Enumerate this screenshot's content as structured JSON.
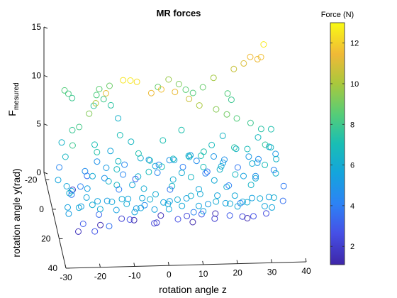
{
  "chart_data": {
    "type": "scatter",
    "projection": "3d",
    "title": "MR forces",
    "xlabel": "rotation angle z",
    "ylabel": "rotation angle y(rad)",
    "zlabel": "F_mesured",
    "zlabel_main": "F",
    "zlabel_sub": "mesured",
    "xlim": [
      -30,
      40
    ],
    "ylim": [
      -25,
      40
    ],
    "zlim": [
      0,
      15
    ],
    "x_ticks": [
      -30,
      -20,
      -10,
      0,
      10,
      20,
      30,
      40
    ],
    "x_tick_labels": [
      "-30",
      "-20",
      "-10",
      "0",
      "10",
      "20",
      "30",
      "40"
    ],
    "y_ticks": [
      -20,
      0,
      20,
      40
    ],
    "y_tick_labels": [
      "-20",
      "0",
      "20",
      "40"
    ],
    "z_ticks": [
      0,
      5,
      10,
      15
    ],
    "z_tick_labels": [
      "0",
      "5",
      "10",
      "15"
    ],
    "grid": false,
    "marker": "open-circle",
    "colormap": "parula",
    "colorbar": {
      "title": "Force (N)",
      "range": [
        1.1,
        13
      ],
      "ticks": [
        2,
        4,
        6,
        8,
        10,
        12
      ],
      "tick_labels": [
        "2",
        "4",
        "6",
        "8",
        "10",
        "12"
      ],
      "placement": "right"
    },
    "points": [
      [
        -24,
        -25,
        8.4
      ],
      [
        -23,
        -24,
        8.2
      ],
      [
        -22,
        -23,
        7.9
      ],
      [
        -14,
        -24,
        8.6
      ],
      [
        -11,
        -24,
        8.9
      ],
      [
        -15,
        -22,
        8.3
      ],
      [
        -13,
        -21,
        8.0
      ],
      [
        -16,
        -20,
        7.5
      ],
      [
        -11,
        -20,
        7.5
      ],
      [
        -9,
        -19,
        6.3
      ],
      [
        3,
        -23,
        8.8
      ],
      [
        6,
        -22,
        9.7
      ],
      [
        9,
        -22,
        9.2
      ],
      [
        11,
        -22,
        8.6
      ],
      [
        13,
        -21,
        8.4
      ],
      [
        16,
        -22,
        8.8
      ],
      [
        19,
        -21,
        9.9
      ],
      [
        23,
        -20,
        8.4
      ],
      [
        24,
        -19,
        7.9
      ],
      [
        25,
        -22,
        10.6
      ],
      [
        28,
        -23,
        11.0
      ],
      [
        30,
        -24,
        11.5
      ],
      [
        32,
        -23,
        11.4
      ],
      [
        33,
        -23,
        11.6
      ],
      [
        34,
        -25,
        12.6
      ],
      [
        -27,
        -3,
        6.4
      ],
      [
        -24,
        -2,
        7.8
      ],
      [
        -22,
        -2,
        8.1
      ],
      [
        -19,
        -3,
        9.3
      ],
      [
        -17,
        -4,
        10.2
      ],
      [
        -14,
        -4,
        11.2
      ],
      [
        -9,
        -4,
        12.5
      ],
      [
        -7,
        -3,
        12.6
      ],
      [
        -5,
        -4,
        12.3
      ],
      [
        -1,
        -2,
        11.4
      ],
      [
        2,
        -3,
        11.6
      ],
      [
        6,
        -3,
        11.3
      ],
      [
        10,
        -2,
        10.7
      ],
      [
        13,
        -2,
        10.0
      ],
      [
        18,
        -3,
        9.4
      ],
      [
        21,
        -2,
        9.0
      ],
      [
        24,
        -3,
        8.4
      ],
      [
        28,
        -3,
        7.9
      ],
      [
        31,
        -2,
        7.4
      ],
      [
        34,
        -3,
        7.2
      ],
      [
        -24,
        -1,
        1.8
      ],
      [
        -20,
        1,
        3.5
      ],
      [
        -17,
        0,
        4.8
      ],
      [
        -13,
        -1,
        5.7
      ],
      [
        -9,
        0,
        4.4
      ],
      [
        -6,
        2,
        3.2
      ],
      [
        -2,
        1,
        5.0
      ],
      [
        1,
        0,
        4.3
      ],
      [
        4,
        1,
        4.9
      ],
      [
        8,
        0,
        4.0
      ],
      [
        10,
        2,
        5.5
      ],
      [
        12,
        0,
        4.6
      ],
      [
        15,
        1,
        3.6
      ],
      [
        17,
        0,
        5.0
      ],
      [
        20,
        1,
        4.8
      ],
      [
        24,
        0,
        3.8
      ],
      [
        27,
        2,
        5.2
      ],
      [
        30,
        0,
        4.6
      ],
      [
        33,
        1,
        6.0
      ],
      [
        35,
        0,
        5.1
      ],
      [
        -21,
        5,
        4.6
      ],
      [
        -15,
        7,
        5.2
      ],
      [
        -10,
        6,
        4.3
      ],
      [
        -5,
        7,
        6.1
      ],
      [
        0,
        6,
        4.4
      ],
      [
        5,
        5,
        5.5
      ],
      [
        9,
        7,
        6.2
      ],
      [
        14,
        6,
        4.2
      ],
      [
        19,
        7,
        5.4
      ],
      [
        23,
        5,
        6.5
      ],
      [
        29,
        7,
        5.3
      ],
      [
        33,
        6,
        6.7
      ],
      [
        -25,
        9,
        7.9
      ],
      [
        -18,
        10,
        7.3
      ],
      [
        -12,
        12,
        6.6
      ],
      [
        -6,
        11,
        7.2
      ],
      [
        -1,
        10,
        5.7
      ],
      [
        4,
        12,
        6.7
      ],
      [
        9,
        9,
        6.4
      ],
      [
        13,
        11,
        7.2
      ],
      [
        18,
        12,
        5.8
      ],
      [
        22,
        10,
        7.4
      ],
      [
        27,
        12,
        6.0
      ],
      [
        31,
        10,
        7.6
      ],
      [
        34,
        12,
        6.4
      ],
      [
        -20,
        17,
        5.9
      ],
      [
        -13,
        18,
        6.7
      ],
      [
        -7,
        20,
        6.2
      ],
      [
        0,
        19,
        7.0
      ],
      [
        6,
        17,
        6.0
      ],
      [
        12,
        20,
        7.0
      ],
      [
        17,
        18,
        6.4
      ],
      [
        24,
        17,
        5.5
      ],
      [
        30,
        19,
        6.9
      ],
      [
        -22,
        22,
        5.4
      ],
      [
        -16,
        24,
        6.4
      ],
      [
        -9,
        23,
        5.8
      ],
      [
        -4,
        21,
        6.8
      ],
      [
        3,
        22,
        6.1
      ],
      [
        8,
        24,
        6.6
      ],
      [
        15,
        22,
        5.9
      ],
      [
        21,
        23,
        6.6
      ],
      [
        27,
        22,
        6.0
      ],
      [
        33,
        21,
        6.3
      ],
      [
        -14,
        28,
        6.6
      ],
      [
        -6,
        27,
        6.0
      ],
      [
        2,
        29,
        6.5
      ],
      [
        10,
        27,
        5.8
      ],
      [
        18,
        28,
        6.1
      ],
      [
        25,
        29,
        6.4
      ],
      [
        -30,
        17,
        5.6
      ],
      [
        -28,
        22,
        5.7
      ],
      [
        -27,
        26,
        5.8
      ],
      [
        -28,
        30,
        6.2
      ],
      [
        -29,
        35,
        5.5
      ],
      [
        -26,
        38,
        5.9
      ],
      [
        -25,
        34,
        5.4
      ],
      [
        -23,
        30,
        5.7
      ],
      [
        -22,
        37,
        6.0
      ],
      [
        -20,
        32,
        5.6
      ],
      [
        -17,
        30,
        5.3
      ],
      [
        -16,
        34,
        5.8
      ],
      [
        -15,
        37,
        5.4
      ],
      [
        -13,
        33,
        5.9
      ],
      [
        -12,
        37,
        6.0
      ],
      [
        -11,
        31,
        5.6
      ],
      [
        -9,
        35,
        5.2
      ],
      [
        -8,
        38,
        5.7
      ],
      [
        -7,
        32,
        5.8
      ],
      [
        -5,
        35,
        6.1
      ],
      [
        -4,
        38,
        5.5
      ],
      [
        -3,
        31,
        6.0
      ],
      [
        -1,
        34,
        5.6
      ],
      [
        0,
        37,
        5.9
      ],
      [
        1,
        32,
        5.4
      ],
      [
        3,
        35,
        6.0
      ],
      [
        4,
        38,
        5.8
      ],
      [
        6,
        31,
        5.5
      ],
      [
        7,
        34,
        6.2
      ],
      [
        9,
        37,
        5.6
      ],
      [
        10,
        31,
        5.9
      ],
      [
        12,
        34,
        5.3
      ],
      [
        14,
        37,
        6.0
      ],
      [
        15,
        31,
        5.7
      ],
      [
        17,
        35,
        5.5
      ],
      [
        18,
        38,
        5.9
      ],
      [
        20,
        32,
        5.8
      ],
      [
        22,
        35,
        5.6
      ],
      [
        23,
        38,
        6.0
      ],
      [
        25,
        32,
        5.5
      ],
      [
        27,
        35,
        5.9
      ],
      [
        28,
        39,
        5.7
      ],
      [
        30,
        31,
        5.4
      ],
      [
        31,
        36,
        6.1
      ],
      [
        -19,
        26,
        3.3
      ],
      [
        -24,
        30,
        3.0
      ],
      [
        -21,
        34,
        2.8
      ],
      [
        -17,
        36,
        3.6
      ],
      [
        -10,
        26,
        2.7
      ],
      [
        -3,
        27,
        2.4
      ],
      [
        4,
        26,
        2.6
      ],
      [
        11,
        25,
        2.9
      ],
      [
        19,
        27,
        3.0
      ],
      [
        26,
        26,
        2.7
      ],
      [
        -12,
        22,
        2.2
      ],
      [
        -2,
        24,
        2.0
      ],
      [
        7,
        22,
        2.3
      ],
      [
        15,
        23,
        2.1
      ],
      [
        23,
        24,
        2.4
      ],
      [
        30,
        23,
        2.5
      ],
      [
        -25,
        26,
        1.6
      ],
      [
        -18,
        20,
        1.3
      ],
      [
        -8,
        18,
        1.4
      ],
      [
        0,
        16,
        1.5
      ],
      [
        9,
        19,
        1.2
      ],
      [
        16,
        15,
        1.4
      ],
      [
        25,
        18,
        1.3
      ],
      [
        -26,
        16,
        3.9
      ],
      [
        -12,
        14,
        4.0
      ],
      [
        3,
        13,
        3.7
      ],
      [
        20,
        14,
        4.1
      ],
      [
        -20,
        40,
        6.0
      ],
      [
        -10,
        40,
        5.6
      ],
      [
        0,
        40,
        5.8
      ],
      [
        10,
        40,
        5.5
      ],
      [
        20,
        40,
        5.9
      ],
      [
        30,
        40,
        5.7
      ],
      [
        -29,
        38,
        5.3
      ],
      [
        22,
        28,
        4.4
      ],
      [
        -6,
        29,
        4.6
      ],
      [
        8,
        32,
        4.2
      ],
      [
        -16,
        12,
        4.9
      ],
      [
        28,
        12,
        4.7
      ],
      [
        -3,
        14,
        6.9
      ],
      [
        12,
        13,
        7.1
      ],
      [
        26,
        8,
        6.9
      ],
      [
        -18,
        3,
        7.0
      ],
      [
        2,
        2,
        7.1
      ],
      [
        16,
        4,
        6.8
      ],
      [
        -7,
        -1,
        6.6
      ],
      [
        30,
        -1,
        6.7
      ],
      [
        -27,
        8,
        6.6
      ],
      [
        -10,
        -3,
        7.0
      ],
      [
        8,
        -4,
        7.2
      ],
      [
        20,
        -4,
        6.5
      ],
      [
        34,
        5,
        4.2
      ],
      [
        -28,
        0,
        4.3
      ],
      [
        -23,
        12,
        4.1
      ],
      [
        36,
        14,
        3.9
      ],
      [
        35,
        22,
        3.6
      ]
    ]
  }
}
